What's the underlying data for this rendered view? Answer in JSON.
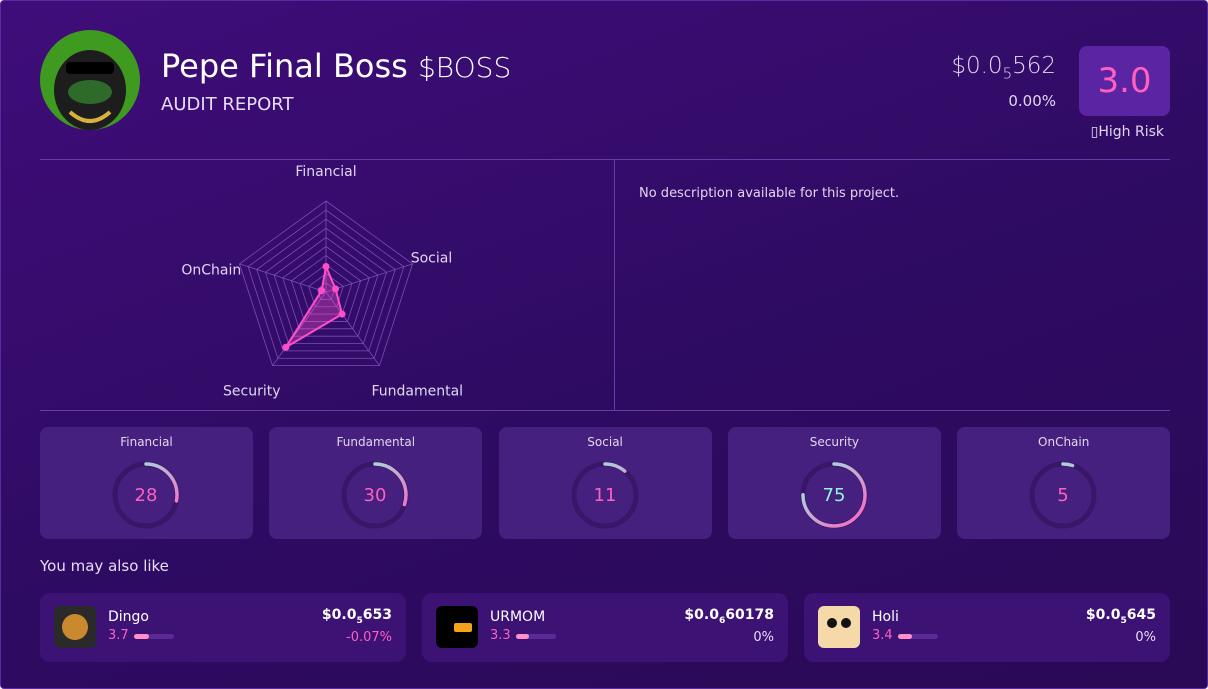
{
  "header": {
    "name": "Pepe Final Boss",
    "ticker": "$BOSS",
    "subtitle": "AUDIT REPORT",
    "price": {
      "prefix": "$0.0",
      "zeros": "5",
      "digits": "562"
    },
    "change": "0.00%",
    "score": "3.0",
    "risk": "High Risk"
  },
  "description": "No description available for this project.",
  "chart_data": {
    "type": "radar",
    "categories": [
      "Financial",
      "Social",
      "Fundamental",
      "Security",
      "OnChain"
    ],
    "values": [
      28,
      11,
      30,
      75,
      5
    ],
    "color": "#ff4fc8",
    "rlim": [
      0,
      100
    ],
    "rticks": [
      10,
      20,
      30,
      40,
      50,
      60,
      70,
      80,
      90,
      100
    ]
  },
  "scores": [
    {
      "label": "Financial",
      "value": 28
    },
    {
      "label": "Fundamental",
      "value": 30
    },
    {
      "label": "Social",
      "value": 11
    },
    {
      "label": "Security",
      "value": 75
    },
    {
      "label": "OnChain",
      "value": 5
    }
  ],
  "recommendations": {
    "title": "You may also like",
    "score_lim": [
      0,
      10
    ],
    "items": [
      {
        "name": "Dingo",
        "score": 3.7,
        "price": {
          "prefix": "$0.0",
          "zeros": "5",
          "digits": "653"
        },
        "change": "-0.07%"
      },
      {
        "name": "URMOM",
        "score": 3.3,
        "price": {
          "prefix": "$0.0",
          "zeros": "6",
          "digits": "60178"
        },
        "change": "0%"
      },
      {
        "name": "Holi",
        "score": 3.4,
        "price": {
          "prefix": "$0.0",
          "zeros": "5",
          "digits": "645"
        },
        "change": "0%"
      }
    ]
  }
}
